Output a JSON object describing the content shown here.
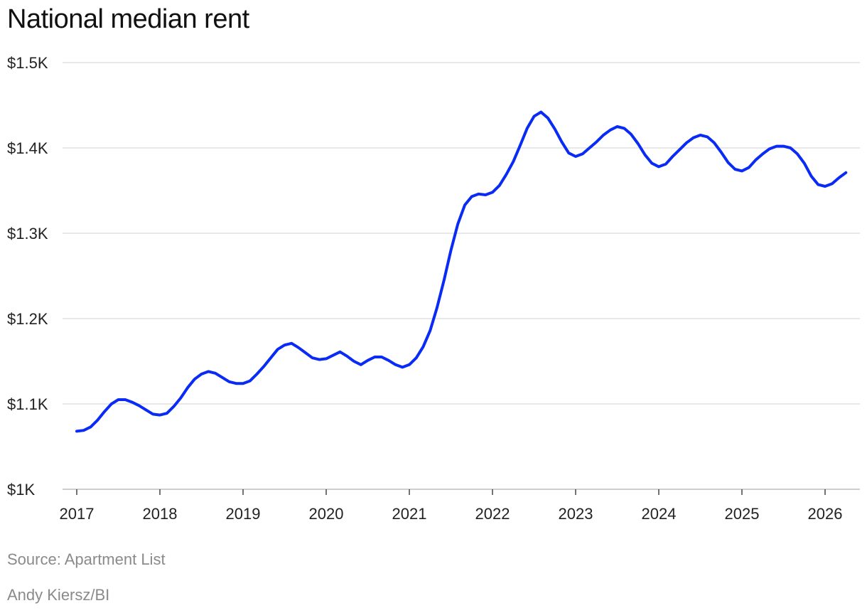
{
  "chart_data": {
    "type": "line",
    "title": "National median rent",
    "xlabel": "",
    "ylabel": "",
    "ylim": [
      1000,
      1500
    ],
    "xlim": [
      "2017-01",
      "2026-04"
    ],
    "y_ticks": [
      {
        "value": 1000,
        "label": "$1K"
      },
      {
        "value": 1100,
        "label": "$1.1K"
      },
      {
        "value": 1200,
        "label": "$1.2K"
      },
      {
        "value": 1300,
        "label": "$1.3K"
      },
      {
        "value": 1400,
        "label": "$1.4K"
      },
      {
        "value": 1500,
        "label": "$1.5K"
      }
    ],
    "x_ticks": [
      "2017",
      "2018",
      "2019",
      "2020",
      "2021",
      "2022",
      "2023",
      "2024",
      "2025",
      "2026"
    ],
    "grid": true,
    "line_color": "#0a2bf5",
    "series": [
      {
        "x": [
          "2017-01",
          "2017-02",
          "2017-03",
          "2017-04",
          "2017-05",
          "2017-06",
          "2017-07",
          "2017-08",
          "2017-09",
          "2017-10",
          "2017-11",
          "2017-12",
          "2018-01",
          "2018-02",
          "2018-03",
          "2018-04",
          "2018-05",
          "2018-06",
          "2018-07",
          "2018-08",
          "2018-09",
          "2018-10",
          "2018-11",
          "2018-12",
          "2019-01",
          "2019-02",
          "2019-03",
          "2019-04",
          "2019-05",
          "2019-06",
          "2019-07",
          "2019-08",
          "2019-09",
          "2019-10",
          "2019-11",
          "2019-12",
          "2020-01",
          "2020-02",
          "2020-03",
          "2020-04",
          "2020-05",
          "2020-06",
          "2020-07",
          "2020-08",
          "2020-09",
          "2020-10",
          "2020-11",
          "2020-12",
          "2021-01",
          "2021-02",
          "2021-03",
          "2021-04",
          "2021-05",
          "2021-06",
          "2021-07",
          "2021-08",
          "2021-09",
          "2021-10",
          "2021-11",
          "2021-12",
          "2022-01",
          "2022-02",
          "2022-03",
          "2022-04",
          "2022-05",
          "2022-06",
          "2022-07",
          "2022-08",
          "2022-09",
          "2022-10",
          "2022-11",
          "2022-12",
          "2023-01",
          "2023-02",
          "2023-03",
          "2023-04",
          "2023-05",
          "2023-06",
          "2023-07",
          "2023-08",
          "2023-09",
          "2023-10",
          "2023-11",
          "2023-12",
          "2024-01",
          "2024-02",
          "2024-03",
          "2024-04",
          "2024-05",
          "2024-06",
          "2024-07",
          "2024-08",
          "2024-09",
          "2024-10",
          "2024-11",
          "2024-12",
          "2025-01",
          "2025-02",
          "2025-03",
          "2025-04",
          "2025-05",
          "2025-06",
          "2025-07",
          "2025-08",
          "2025-09",
          "2025-10",
          "2025-11",
          "2025-12",
          "2026-01",
          "2026-02",
          "2026-03",
          "2026-04"
        ],
        "values": [
          1068,
          1069,
          1073,
          1081,
          1091,
          1100,
          1105,
          1105,
          1102,
          1098,
          1093,
          1088,
          1087,
          1089,
          1097,
          1107,
          1119,
          1129,
          1135,
          1138,
          1136,
          1131,
          1126,
          1124,
          1124,
          1127,
          1135,
          1144,
          1154,
          1164,
          1169,
          1171,
          1166,
          1160,
          1154,
          1152,
          1153,
          1157,
          1161,
          1156,
          1150,
          1146,
          1151,
          1155,
          1155,
          1151,
          1146,
          1143,
          1146,
          1154,
          1167,
          1186,
          1213,
          1245,
          1280,
          1311,
          1333,
          1343,
          1346,
          1345,
          1348,
          1356,
          1369,
          1384,
          1403,
          1423,
          1437,
          1442,
          1435,
          1422,
          1407,
          1394,
          1390,
          1393,
          1400,
          1407,
          1415,
          1421,
          1425,
          1423,
          1416,
          1405,
          1392,
          1382,
          1378,
          1381,
          1390,
          1398,
          1406,
          1412,
          1415,
          1413,
          1406,
          1395,
          1383,
          1375,
          1373,
          1377,
          1386,
          1393,
          1399,
          1402,
          1402,
          1400,
          1393,
          1382,
          1367,
          1357,
          1355,
          1358,
          1365,
          1371
        ]
      }
    ]
  },
  "source": "Source: Apartment List",
  "credit": "Andy Kiersz/BI"
}
